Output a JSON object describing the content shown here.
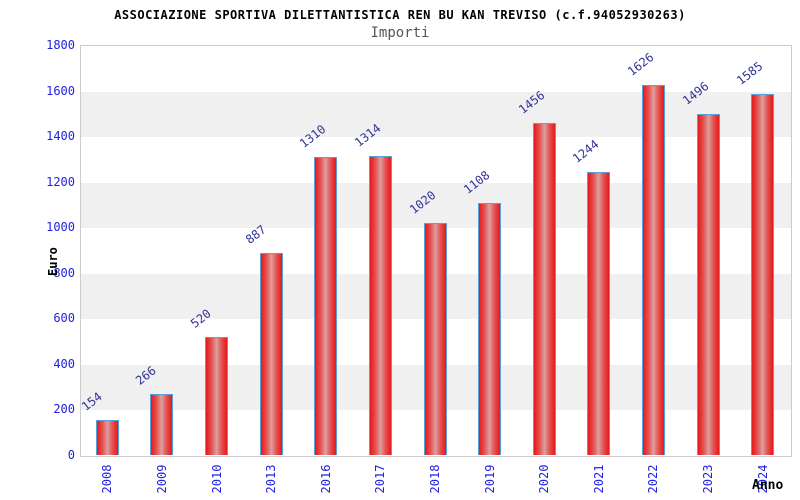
{
  "header": {
    "title": "ASSOCIAZIONE SPORTIVA DILETTANTISTICA REN BU KAN TREVISO (c.f.94052930263)",
    "subtitle": "Importi"
  },
  "chart_data": {
    "type": "bar",
    "title": "ASSOCIAZIONE SPORTIVA DILETTANTISTICA REN BU KAN TREVISO (c.f.94052930263)",
    "subtitle": "Importi",
    "xlabel": "Anno",
    "ylabel": "Euro",
    "categories": [
      "2008",
      "2009",
      "2010",
      "2013",
      "2016",
      "2017",
      "2018",
      "2019",
      "2020",
      "2021",
      "2022",
      "2023",
      "2024"
    ],
    "values": [
      154,
      266,
      520,
      887,
      1310,
      1314,
      1020,
      1108,
      1456,
      1244,
      1626,
      1496,
      1585
    ],
    "ylim": [
      0,
      1800
    ],
    "ytick_step": 200,
    "yticks": [
      "0",
      "200",
      "400",
      "600",
      "800",
      "1000",
      "1200",
      "1400",
      "1600",
      "1800"
    ],
    "grid": "alternating-bands",
    "legend": "none",
    "colors": {
      "bar_edge_red": "#e41a1a",
      "bar_center_highlight": "#d9a1a1",
      "bar_border_blue": "#58a0d8",
      "axis_tick_text_blue": "#2222dd",
      "value_label_navy": "#333399",
      "band_white": "#ffffff",
      "band_gray": "#f0f0f0",
      "plot_border_gray": "#cccccc",
      "subtitle_gray": "#555555",
      "title_black": "#000000"
    }
  }
}
